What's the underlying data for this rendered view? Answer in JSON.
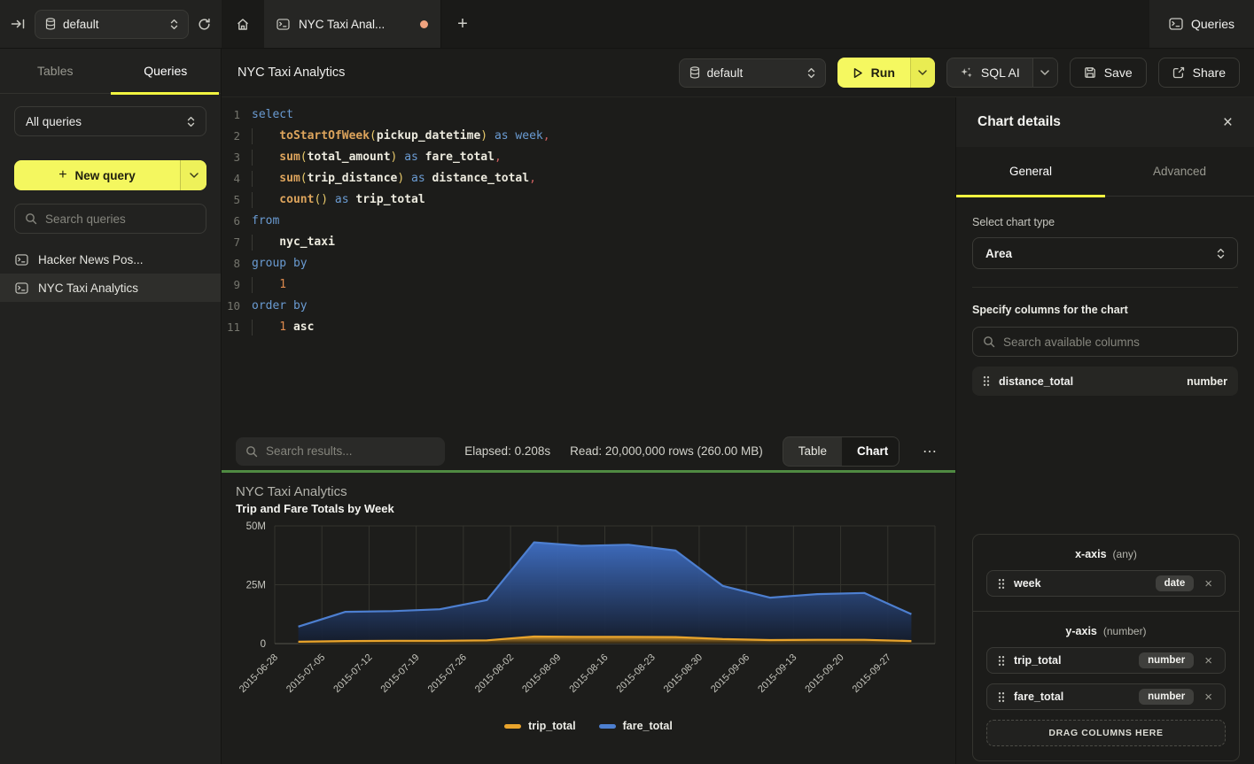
{
  "topbar": {
    "database_selector": {
      "value": "default"
    },
    "tab": {
      "label": "NYC Taxi Anal...",
      "dirty": true
    },
    "queries_button": "Queries",
    "new_tab_label": "+"
  },
  "sidebar": {
    "tabs": [
      {
        "label": "Tables",
        "active": false
      },
      {
        "label": "Queries",
        "active": true
      }
    ],
    "filter_select_value": "All queries",
    "new_query_button": "New query",
    "search_placeholder": "Search queries",
    "items": [
      {
        "label": "Hacker News Pos...",
        "active": false
      },
      {
        "label": "NYC Taxi Analytics",
        "active": true
      }
    ]
  },
  "editor_header": {
    "title": "NYC Taxi Analytics",
    "database_selector_value": "default",
    "run_button": "Run",
    "sql_ai_button": "SQL AI",
    "save_button": "Save",
    "share_button": "Share"
  },
  "editor": {
    "lines": [
      {
        "n": 1,
        "ind": 0,
        "t": [
          [
            "kw",
            "select"
          ]
        ]
      },
      {
        "n": 2,
        "ind": 1,
        "t": [
          [
            "fn",
            "toStartOfWeek"
          ],
          [
            "pr",
            "("
          ],
          [
            "id",
            "pickup_datetime"
          ],
          [
            "pr",
            ")"
          ],
          [
            "pl",
            " "
          ],
          [
            "kw",
            "as"
          ],
          [
            "pl",
            " "
          ],
          [
            "kw",
            "week"
          ],
          [
            "pu",
            ","
          ]
        ]
      },
      {
        "n": 3,
        "ind": 1,
        "t": [
          [
            "fn",
            "sum"
          ],
          [
            "pr",
            "("
          ],
          [
            "id",
            "total_amount"
          ],
          [
            "pr",
            ")"
          ],
          [
            "pl",
            " "
          ],
          [
            "kw",
            "as"
          ],
          [
            "pl",
            " "
          ],
          [
            "id",
            "fare_total"
          ],
          [
            "pu",
            ","
          ]
        ]
      },
      {
        "n": 4,
        "ind": 1,
        "t": [
          [
            "fn",
            "sum"
          ],
          [
            "pr",
            "("
          ],
          [
            "id",
            "trip_distance"
          ],
          [
            "pr",
            ")"
          ],
          [
            "pl",
            " "
          ],
          [
            "kw",
            "as"
          ],
          [
            "pl",
            " "
          ],
          [
            "id",
            "distance_total"
          ],
          [
            "pu",
            ","
          ]
        ]
      },
      {
        "n": 5,
        "ind": 1,
        "t": [
          [
            "fn",
            "count"
          ],
          [
            "pr",
            "()"
          ],
          [
            "pl",
            " "
          ],
          [
            "kw",
            "as"
          ],
          [
            "pl",
            " "
          ],
          [
            "id",
            "trip_total"
          ]
        ]
      },
      {
        "n": 6,
        "ind": 0,
        "t": [
          [
            "kw",
            "from"
          ]
        ]
      },
      {
        "n": 7,
        "ind": 1,
        "t": [
          [
            "id",
            "nyc_taxi"
          ]
        ]
      },
      {
        "n": 8,
        "ind": 0,
        "t": [
          [
            "kw",
            "group by"
          ]
        ]
      },
      {
        "n": 9,
        "ind": 1,
        "t": [
          [
            "nu",
            "1"
          ]
        ]
      },
      {
        "n": 10,
        "ind": 0,
        "t": [
          [
            "kw",
            "order by"
          ]
        ]
      },
      {
        "n": 11,
        "ind": 1,
        "t": [
          [
            "nu",
            "1"
          ],
          [
            "pl",
            " "
          ],
          [
            "id",
            "asc"
          ]
        ]
      }
    ]
  },
  "results_bar": {
    "search_placeholder": "Search results...",
    "elapsed": "Elapsed: 0.208s",
    "read": "Read: 20,000,000 rows (260.00 MB)",
    "view_toggle": [
      {
        "label": "Table",
        "active": false
      },
      {
        "label": "Chart",
        "active": true
      }
    ]
  },
  "chart_data": {
    "type": "area",
    "title": "NYC Taxi Analytics",
    "subtitle": "Trip and Fare Totals by Week",
    "x": [
      "2015-06-28",
      "2015-07-05",
      "2015-07-12",
      "2015-07-19",
      "2015-07-26",
      "2015-08-02",
      "2015-08-09",
      "2015-08-16",
      "2015-08-23",
      "2015-08-30",
      "2015-09-06",
      "2015-09-13",
      "2015-09-20",
      "2015-09-27"
    ],
    "series": [
      {
        "name": "trip_total",
        "color": "#e9a42c",
        "values": [
          800000,
          1100000,
          1200000,
          1200000,
          1400000,
          3000000,
          2900000,
          2900000,
          2800000,
          1900000,
          1500000,
          1600000,
          1600000,
          1100000
        ]
      },
      {
        "name": "fare_total",
        "color": "#4d7fd0",
        "values": [
          7200000,
          13500000,
          13800000,
          14600000,
          18500000,
          43000000,
          41500000,
          42000000,
          39500000,
          24500000,
          19500000,
          21000000,
          21500000,
          12500000
        ]
      }
    ],
    "ylim": [
      0,
      50000000
    ],
    "yticks": [
      "0",
      "25M",
      "50M"
    ],
    "grid": true,
    "legend_position": "bottom"
  },
  "chart_panel": {
    "title": "Chart details",
    "tabs": [
      {
        "label": "General",
        "active": true
      },
      {
        "label": "Advanced",
        "active": false
      }
    ],
    "chart_type_label": "Select chart type",
    "chart_type_value": "Area",
    "columns_label": "Specify columns for the chart",
    "search_placeholder": "Search available columns",
    "available_columns": [
      {
        "name": "distance_total",
        "type": "number"
      }
    ],
    "x_axis": {
      "title": "x-axis",
      "hint": "(any)",
      "columns": [
        {
          "name": "week",
          "type": "date"
        }
      ]
    },
    "y_axis": {
      "title": "y-axis",
      "hint": "(number)",
      "columns": [
        {
          "name": "trip_total",
          "type": "number"
        },
        {
          "name": "fare_total",
          "type": "number"
        }
      ]
    },
    "drop_zone_label": "DRAG COLUMNS HERE"
  },
  "colors": {
    "accent_yellow": "#f4f75f",
    "tab_underline": "#f2f440",
    "green_divider": "#4f8a42",
    "dirty_dot": "#efa27e",
    "series_trip_total": "#e9a42c",
    "series_fare_total": "#4d7fd0"
  }
}
